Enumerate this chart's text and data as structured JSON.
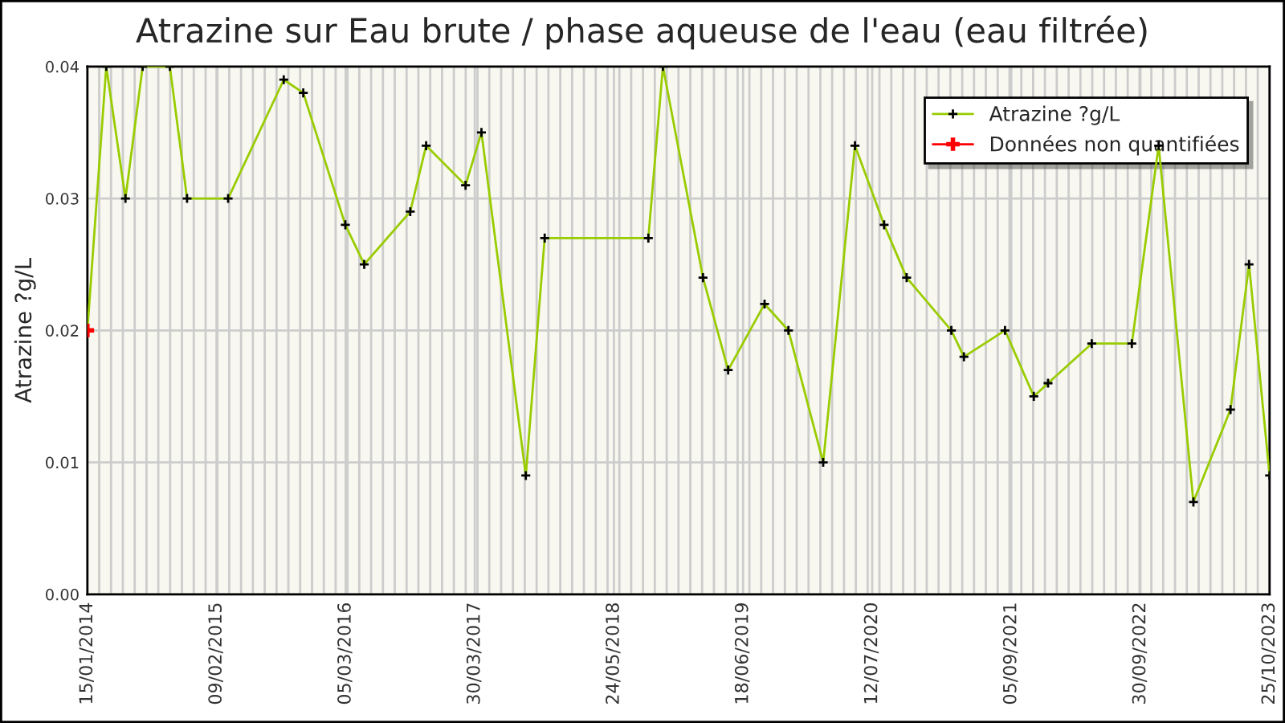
{
  "chart_data": {
    "type": "line",
    "title": "Atrazine sur Eau brute / phase aqueuse de l'eau (eau filtrée)",
    "ylabel": "Atrazine ?g/L",
    "series": [
      {
        "name": "Atrazine ?g/L",
        "color": "#99cc00",
        "x": [
          "2014-01-15",
          "2014-03-13",
          "2014-05-10",
          "2014-07-01",
          "2014-09-21",
          "2014-11-12",
          "2015-03-16",
          "2015-08-31",
          "2015-10-29",
          "2016-03-04",
          "2016-04-30",
          "2016-09-16",
          "2016-11-03",
          "2017-03-02",
          "2017-04-19",
          "2017-08-31",
          "2017-10-27",
          "2018-09-05",
          "2018-10-19",
          "2019-02-17",
          "2019-05-04",
          "2019-08-22",
          "2019-11-02",
          "2020-02-15",
          "2020-05-21",
          "2020-08-17",
          "2020-10-24",
          "2021-03-08",
          "2021-04-15",
          "2021-08-17",
          "2021-11-12",
          "2021-12-25",
          "2022-05-06",
          "2022-09-04",
          "2022-11-24",
          "2023-03-09",
          "2023-06-29",
          "2023-08-24",
          "2023-10-25"
        ],
        "values": [
          0.02,
          0.04,
          0.03,
          0.04,
          0.04,
          0.03,
          0.03,
          0.039,
          0.038,
          0.028,
          0.025,
          0.029,
          0.034,
          0.031,
          0.035,
          0.009,
          0.027,
          0.027,
          0.04,
          0.024,
          0.017,
          0.022,
          0.02,
          0.01,
          0.034,
          0.028,
          0.024,
          0.02,
          0.018,
          0.02,
          0.015,
          0.016,
          0.019,
          0.019,
          0.034,
          0.007,
          0.014,
          0.025,
          0.009
        ]
      },
      {
        "name": "Données non quantifiées",
        "type": "scatter",
        "color": "#ff0000",
        "x": [
          "2014-01-15"
        ],
        "values": [
          0.02
        ]
      }
    ],
    "xlim": [
      "2014-01-15",
      "2023-10-25"
    ],
    "xticks": [
      {
        "value": "2014-01-15",
        "label": "15/01/2014"
      },
      {
        "value": "2015-02-09",
        "label": "09/02/2015"
      },
      {
        "value": "2016-03-05",
        "label": "05/03/2016"
      },
      {
        "value": "2017-03-30",
        "label": "30/03/2017"
      },
      {
        "value": "2018-05-24",
        "label": "24/05/2018"
      },
      {
        "value": "2019-06-18",
        "label": "18/06/2019"
      },
      {
        "value": "2020-07-12",
        "label": "12/07/2020"
      },
      {
        "value": "2021-09-05",
        "label": "05/09/2021"
      },
      {
        "value": "2022-09-30",
        "label": "30/09/2022"
      },
      {
        "value": "2023-10-25",
        "label": "25/10/2023"
      }
    ],
    "ylim": [
      0,
      0.04
    ],
    "yticks": [
      {
        "value": 0,
        "label": "0.00"
      },
      {
        "value": 0.01,
        "label": "0.01"
      },
      {
        "value": 0.02,
        "label": "0.02"
      },
      {
        "value": 0.03,
        "label": "0.03"
      },
      {
        "value": 0.04,
        "label": "0.04"
      }
    ],
    "grid": true,
    "legend": "top right",
    "marker": "cross",
    "line_style": "solid"
  }
}
